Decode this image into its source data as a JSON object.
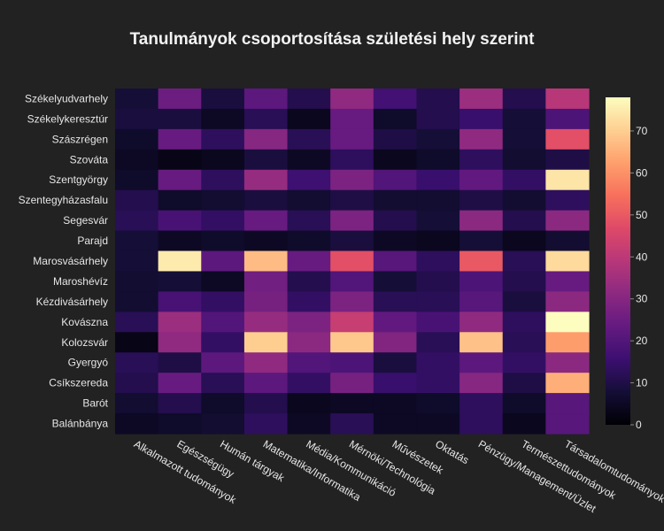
{
  "chart_data": {
    "type": "heatmap",
    "title": "Tanulmányok csoportosítása születési hely szerint",
    "xlabel": "",
    "ylabel": "",
    "x_categories": [
      "Alkalmazott tudományok",
      "Egészségügy",
      "Humán tárgyak",
      "Matematika/Informatika",
      "Média/Kommunikáció",
      "Mérnöki/Technológia",
      "Művészetek",
      "Oktatás",
      "Pénzügy/Management/Üzlet",
      "Természettudományok",
      "Társadalomtudományok"
    ],
    "y_categories": [
      "Székelyudvarhely",
      "Székelykeresztúr",
      "Szászrégen",
      "Szováta",
      "Szentgyörgy",
      "Szentegyházasfalu",
      "Segesvár",
      "Parajd",
      "Marosvásárhely",
      "Maroshévíz",
      "Kézdivásárhely",
      "Kovászna",
      "Kolozsvár",
      "Gyergyó",
      "Csíkszereda",
      "Barót",
      "Balánbánya"
    ],
    "z": [
      [
        8,
        25,
        9,
        22,
        11,
        32,
        17,
        11,
        34,
        11,
        39
      ],
      [
        9,
        9,
        5,
        12,
        4,
        24,
        6,
        11,
        15,
        8,
        19
      ],
      [
        6,
        24,
        13,
        30,
        12,
        24,
        10,
        8,
        32,
        8,
        48
      ],
      [
        5,
        3,
        4,
        9,
        5,
        13,
        4,
        6,
        13,
        7,
        10
      ],
      [
        6,
        24,
        13,
        33,
        16,
        28,
        20,
        15,
        23,
        14,
        74
      ],
      [
        11,
        6,
        7,
        9,
        7,
        10,
        7,
        7,
        10,
        7,
        13
      ],
      [
        12,
        18,
        14,
        24,
        12,
        28,
        11,
        8,
        31,
        11,
        31
      ],
      [
        8,
        5,
        6,
        5,
        6,
        9,
        5,
        4,
        8,
        4,
        7
      ],
      [
        8,
        75,
        22,
        67,
        24,
        48,
        21,
        13,
        50,
        12,
        72
      ],
      [
        7,
        8,
        5,
        26,
        11,
        20,
        8,
        11,
        19,
        11,
        24
      ],
      [
        7,
        18,
        14,
        27,
        14,
        28,
        12,
        12,
        21,
        9,
        31
      ],
      [
        12,
        34,
        20,
        33,
        28,
        42,
        23,
        18,
        32,
        13,
        78
      ],
      [
        3,
        32,
        14,
        70,
        31,
        69,
        29,
        12,
        68,
        12,
        62
      ],
      [
        12,
        10,
        22,
        32,
        20,
        19,
        9,
        14,
        22,
        14,
        31
      ],
      [
        11,
        24,
        12,
        22,
        14,
        27,
        15,
        14,
        30,
        10,
        65
      ],
      [
        7,
        11,
        6,
        11,
        4,
        5,
        5,
        6,
        13,
        6,
        21
      ],
      [
        5,
        6,
        7,
        13,
        5,
        12,
        5,
        5,
        13,
        4,
        21
      ]
    ],
    "colorscale": "magma",
    "zmin": 0,
    "zmax": 78,
    "colorbar_ticks": [
      0,
      10,
      20,
      30,
      40,
      50,
      60,
      70
    ],
    "grid": false,
    "legend": "colorbar-right"
  },
  "colors": {
    "background": "#222222",
    "text": "#e6e6e6"
  }
}
